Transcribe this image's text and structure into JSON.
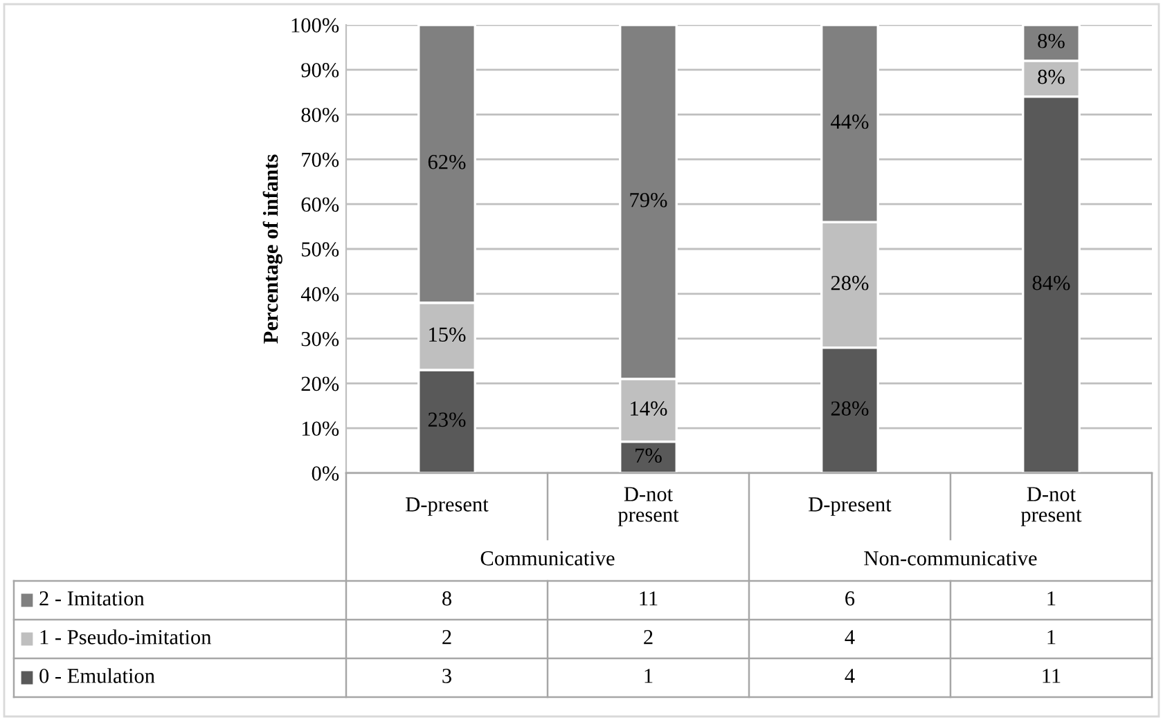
{
  "chart_data": {
    "type": "bar",
    "stacked": true,
    "ylabel": "Percentage of infants",
    "categories": [
      "D-present",
      "D-not present",
      "D-present",
      "D-not present"
    ],
    "series": [
      {
        "name": "0 - Emulation",
        "color": "#595959",
        "values": [
          23,
          7,
          28,
          84
        ],
        "value_labels": [
          "23%",
          "7%",
          "28%",
          "84%"
        ]
      },
      {
        "name": "1 - Pseudo-imitation",
        "color": "#bfbfbf",
        "values": [
          15,
          14,
          28,
          8
        ],
        "value_labels": [
          "15%",
          "14%",
          "28%",
          "8%"
        ]
      },
      {
        "name": "2 - Imitation",
        "color": "#808080",
        "values": [
          62,
          79,
          44,
          8
        ],
        "value_labels": [
          "62%",
          "79%",
          "44%",
          "8%"
        ]
      }
    ],
    "annotations": [
      "Communicative",
      "Non-communicative",
      "8",
      "11",
      "6",
      "1",
      "2",
      "2",
      "4",
      "1",
      "3",
      "1",
      "4",
      "11"
    ],
    "ylim": [
      0,
      100
    ],
    "yticks": [
      {
        "value": 0,
        "label": "0%"
      },
      {
        "value": 10,
        "label": "10%"
      },
      {
        "value": 20,
        "label": "20%"
      },
      {
        "value": 30,
        "label": "30%"
      },
      {
        "value": 40,
        "label": "40%"
      },
      {
        "value": 50,
        "label": "50%"
      },
      {
        "value": 60,
        "label": "60%"
      },
      {
        "value": 70,
        "label": "70%"
      },
      {
        "value": 80,
        "label": "80%"
      },
      {
        "value": 90,
        "label": "90%"
      },
      {
        "value": 100,
        "label": "100%"
      }
    ],
    "grid": "y",
    "legend": "bottom"
  }
}
